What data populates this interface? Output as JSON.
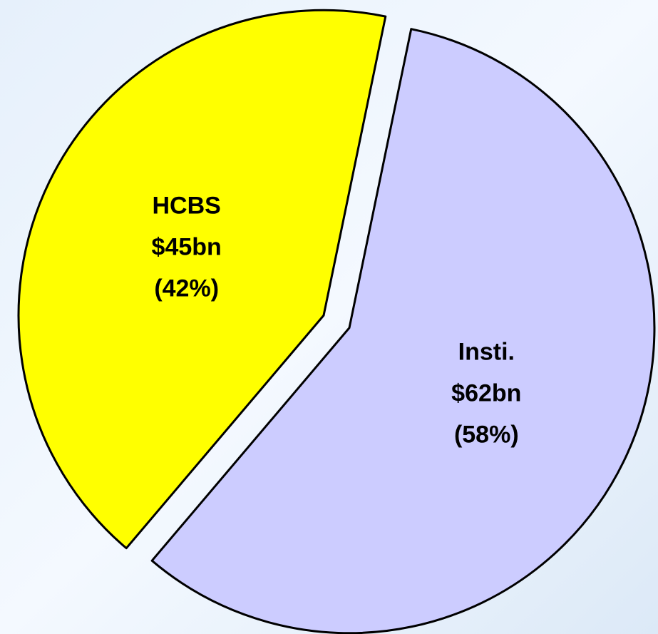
{
  "chart_data": {
    "type": "pie",
    "categories": [
      "HCBS",
      "Insti."
    ],
    "values": [
      45,
      62
    ],
    "value_labels": [
      "$45bn",
      "$62bn"
    ],
    "percent_labels": [
      "(42%)",
      "(58%)"
    ],
    "colors": [
      "#ffff00",
      "#ccccff"
    ]
  }
}
